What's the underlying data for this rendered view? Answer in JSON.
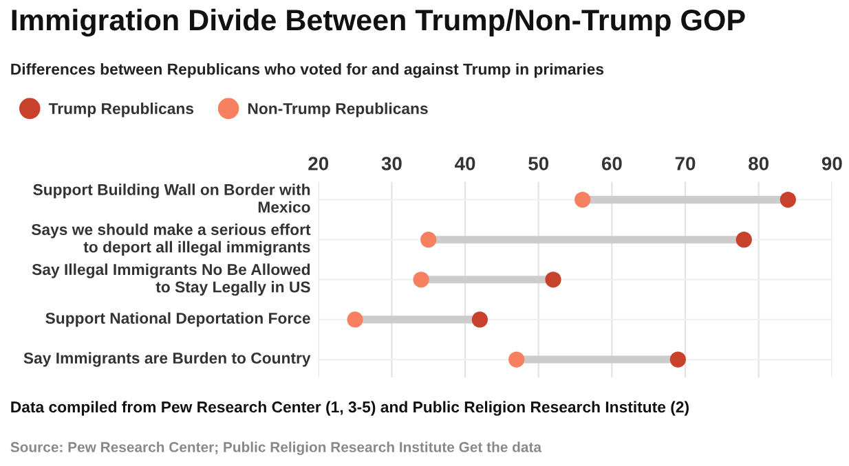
{
  "chart_data": {
    "type": "scatter",
    "orientation": "horizontal",
    "title": "Immigration Divide Between Trump/Non-Trump GOP",
    "subtitle": "Differences between Republicans who voted for and against Trump in primaries",
    "categories": [
      "Support Building Wall on Border with Mexico",
      "Says we should make a serious effort to deport all illegal immigrants",
      "Say Illegal Immigrants No Be Allowed to Stay Legally in US",
      "Support National Deportation Force",
      "Say Immigrants are Burden to Country"
    ],
    "series": [
      {
        "name": "Trump Republicans",
        "color": "#c8412c",
        "values": [
          84,
          78,
          52,
          42,
          69
        ]
      },
      {
        "name": "Non-Trump Republicans",
        "color": "#f6805f",
        "values": [
          56,
          35,
          34,
          25,
          47
        ]
      }
    ],
    "xlim": [
      20,
      90
    ],
    "xticks": [
      20,
      30,
      40,
      50,
      60,
      70,
      80,
      90
    ],
    "grid": true,
    "legend": "top",
    "marker": "circle",
    "annotations": [
      "Data compiled from Pew Research Center (1, 3-5) and Public Religion Research Institute (2)",
      "Source: Pew Research Center; Public Religion Research Institute Get the data"
    ]
  }
}
